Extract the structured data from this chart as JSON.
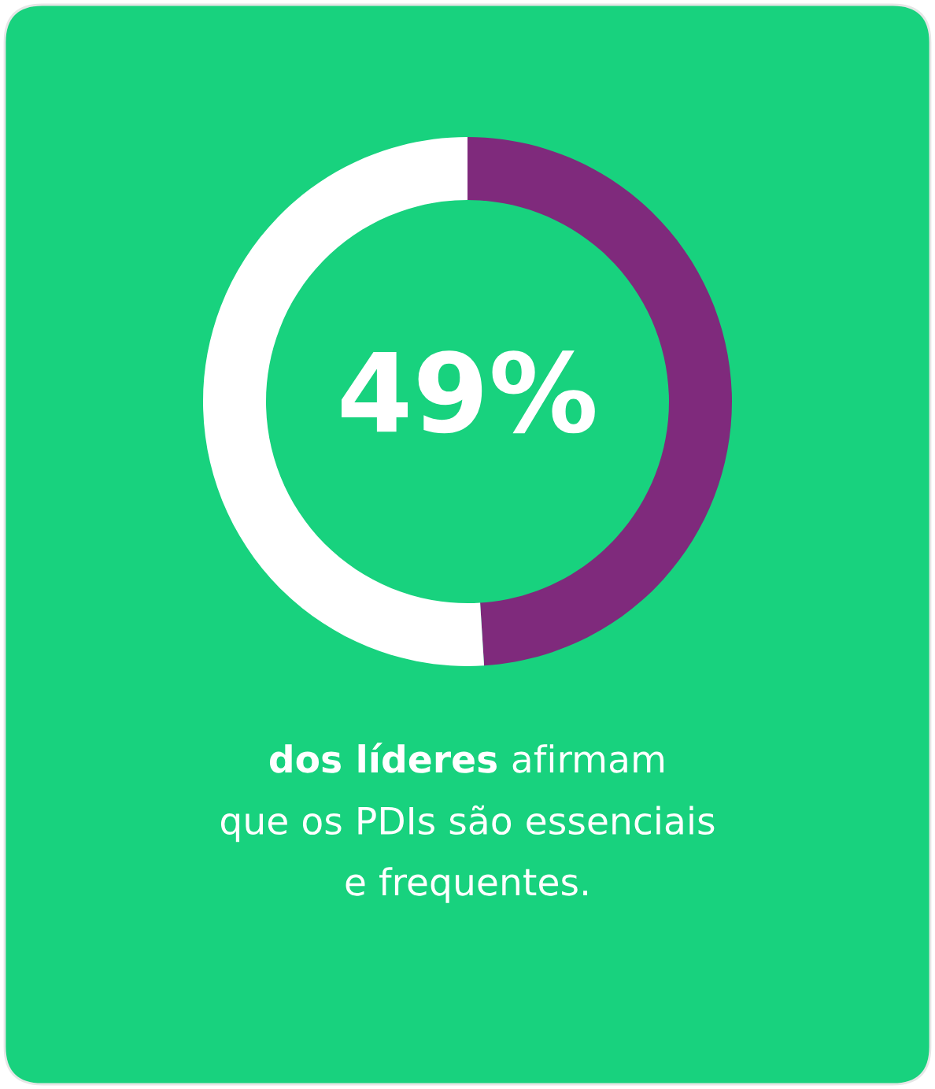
{
  "chart_data": {
    "type": "donut",
    "categories": [
      null,
      null
    ],
    "values": [
      49,
      51
    ],
    "colors": [
      "#7f2a7c",
      "#ffffff"
    ],
    "value_labels": [
      "49%",
      null
    ],
    "annotations": [
      "dos líderes",
      "afirmam\nque os PDIs são essenciais\ne frequentes."
    ]
  }
}
